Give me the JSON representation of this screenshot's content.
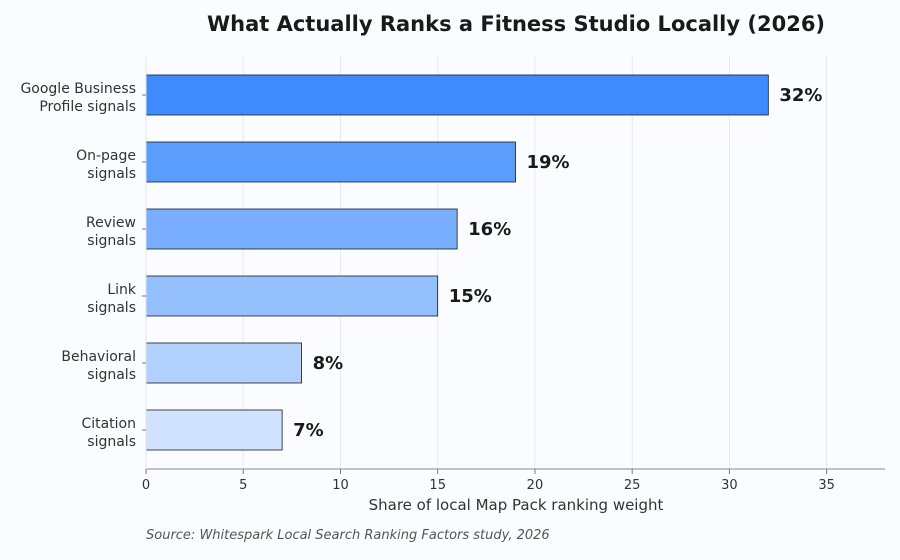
{
  "chart_data": {
    "type": "bar",
    "orientation": "horizontal",
    "title": "What Actually Ranks a Fitness Studio Locally (2026)",
    "xlabel": "Share of local Map Pack ranking weight",
    "ylabel": "",
    "categories": [
      [
        "Google Business",
        "Profile signals"
      ],
      [
        "On-page",
        "signals"
      ],
      [
        "Review",
        "signals"
      ],
      [
        "Link",
        "signals"
      ],
      [
        "Behavioral",
        "signals"
      ],
      [
        "Citation",
        "signals"
      ]
    ],
    "values": [
      32,
      19,
      16,
      15,
      8,
      7
    ],
    "value_labels": [
      "32%",
      "19%",
      "16%",
      "15%",
      "8%",
      "7%"
    ],
    "bar_colors": [
      "#3d8bfd",
      "#5b9dfd",
      "#78aefd",
      "#95c0fe",
      "#b3d1fe",
      "#d0e2fe"
    ],
    "xlim": [
      0,
      38
    ],
    "xticks": [
      0,
      5,
      10,
      15,
      20,
      25,
      30,
      35
    ],
    "grid": "vertical",
    "legend": "none",
    "source": "Source: Whitespark Local Search Ranking Factors study, 2026"
  }
}
